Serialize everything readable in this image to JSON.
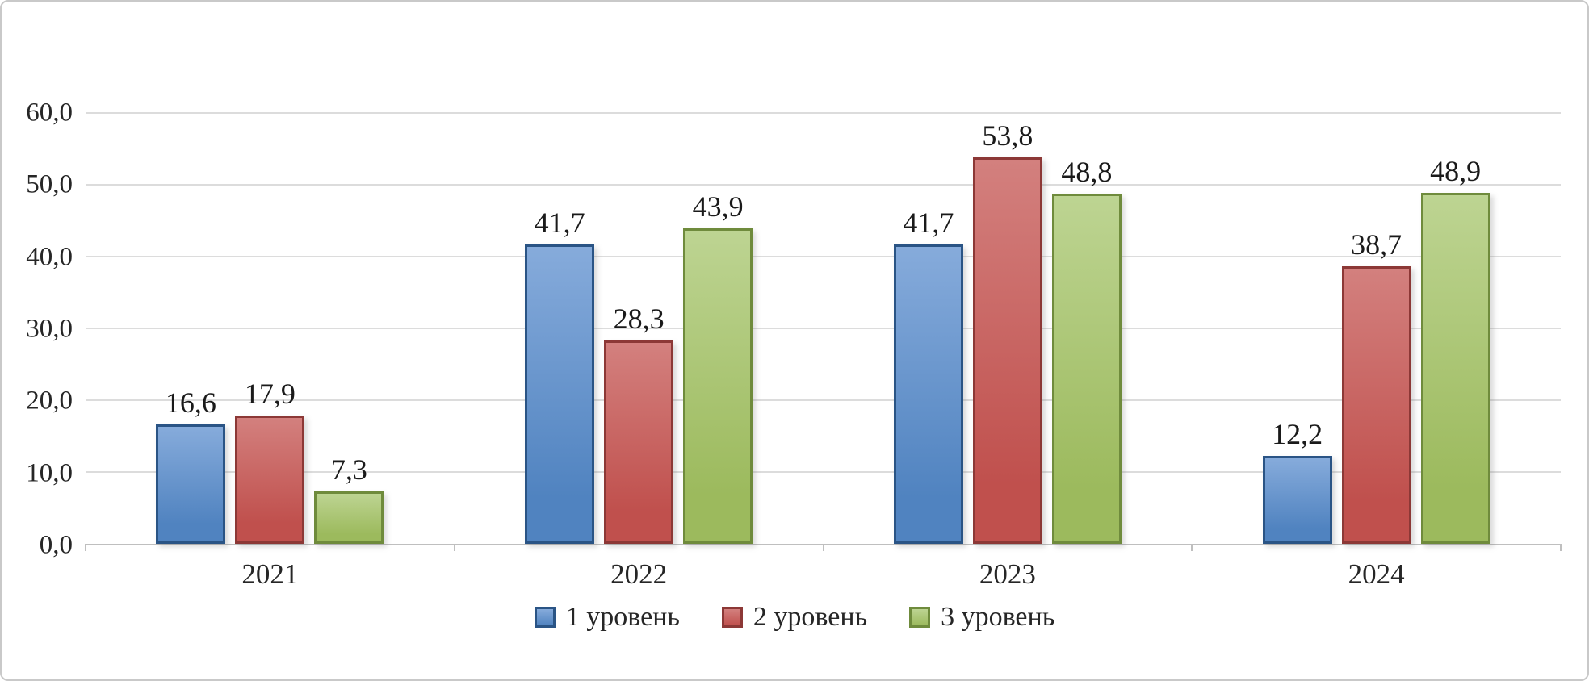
{
  "chart_data": {
    "type": "bar",
    "title": "",
    "categories": [
      "2021",
      "2022",
      "2023",
      "2024"
    ],
    "series": [
      {
        "name": "1 уровень",
        "values": [
          16.6,
          41.7,
          41.7,
          12.2
        ],
        "value_labels": [
          "16,6",
          "41,7",
          "41,7",
          "12,2"
        ],
        "fill": "#5083c0",
        "fill_light": "#86abdb",
        "border": "#2a5485"
      },
      {
        "name": "2 уровень",
        "values": [
          17.9,
          28.3,
          53.8,
          38.7
        ],
        "value_labels": [
          "17,9",
          "28,3",
          "53,8",
          "38,7"
        ],
        "fill": "#c0504d",
        "fill_light": "#d3807e",
        "border": "#8c3836"
      },
      {
        "name": "3 уровень",
        "values": [
          7.3,
          43.9,
          48.8,
          48.9
        ],
        "value_labels": [
          "7,3",
          "43,9",
          "48,8",
          "48,9"
        ],
        "fill": "#9cba5d",
        "fill_light": "#bdd492",
        "border": "#6f8b3c"
      }
    ],
    "ylim": [
      0,
      60
    ],
    "yticks": {
      "values": [
        0,
        10,
        20,
        30,
        40,
        50,
        60
      ],
      "labels": [
        "0,0",
        "10,0",
        "20,0",
        "30,0",
        "40,0",
        "50,0",
        "60,0"
      ]
    },
    "grid": "horizontal",
    "legend_position": "bottom",
    "colors": {
      "gridline": "#dcdcdc",
      "axis": "#bfbfbf",
      "text": "#262626",
      "frame_border": "#c9c9c9"
    }
  }
}
